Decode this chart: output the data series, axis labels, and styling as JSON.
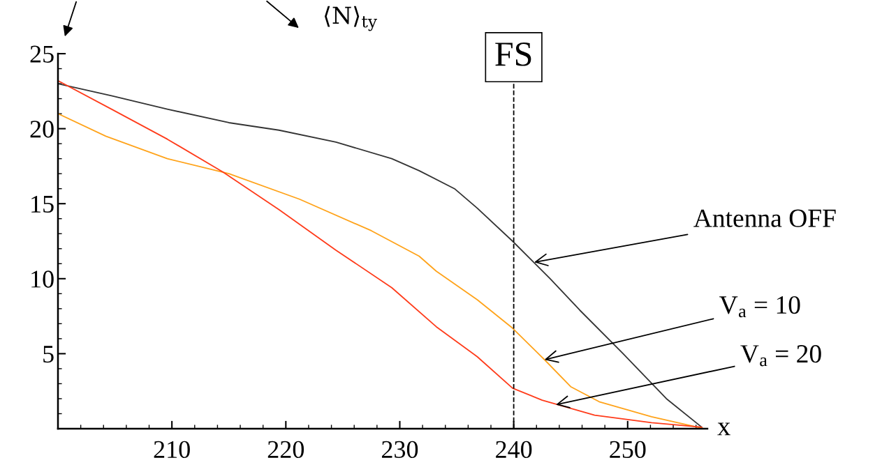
{
  "chart_data": {
    "type": "line",
    "ylabel": "⟨N⟩$_{ty}$",
    "xlabel": "x",
    "xlim": [
      200,
      257
    ],
    "ylim": [
      0,
      25
    ],
    "xticks": [
      210,
      220,
      230,
      240,
      250
    ],
    "yticks": [
      5,
      10,
      15,
      20,
      25
    ],
    "grid": false,
    "legend": false,
    "marker": "none",
    "line_style": "solid",
    "series": [
      {
        "color": "#333333",
        "x": [
          200,
          204.7,
          209.6,
          215,
          219.4,
          224.4,
          229.3,
          231.7,
          234.8,
          236.8,
          239.9,
          243.2,
          245.8,
          249.6,
          253.4,
          256.5
        ],
        "values": [
          23.0,
          22.2,
          21.3,
          20.4,
          19.9,
          19.1,
          18.0,
          17.2,
          16.0,
          14.7,
          12.5,
          10.0,
          7.9,
          5.0,
          2.0,
          0.1
        ]
      },
      {
        "color": "#ffa31a",
        "x": [
          200,
          204.2,
          209.6,
          215,
          221.2,
          227.5,
          231.7,
          233.2,
          236.8,
          239.9,
          242.7,
          245,
          247.5,
          252.1,
          256.7
        ],
        "values": [
          21.0,
          19.5,
          18.0,
          17.0,
          15.3,
          13.2,
          11.5,
          10.5,
          8.6,
          6.7,
          4.6,
          2.8,
          1.8,
          0.8,
          0
        ]
      },
      {
        "color": "#ff3b1a",
        "x": [
          200,
          204.7,
          209.6,
          214.5,
          219.4,
          224.4,
          229.3,
          233.2,
          236.8,
          239.9,
          242.5,
          247.1,
          252.1,
          256.5
        ],
        "values": [
          23.2,
          21.3,
          19.3,
          17.1,
          14.6,
          11.9,
          9.4,
          6.8,
          4.8,
          2.7,
          1.9,
          0.9,
          0.4,
          0.1
        ]
      }
    ],
    "ref_lines": [
      {
        "axis": "x",
        "value": 240,
        "label": "FS",
        "line_style": "dashed",
        "color": "#000000"
      }
    ],
    "annotations": [
      {
        "text": "Antenna OFF",
        "x": 241.8,
        "y": 11.1
      },
      {
        "text": "V$_{a}$ = 10",
        "x": 242.7,
        "y": 4.6
      },
      {
        "text": "V$_{a}$ = 20",
        "x": 243.7,
        "y": 1.6
      }
    ]
  }
}
